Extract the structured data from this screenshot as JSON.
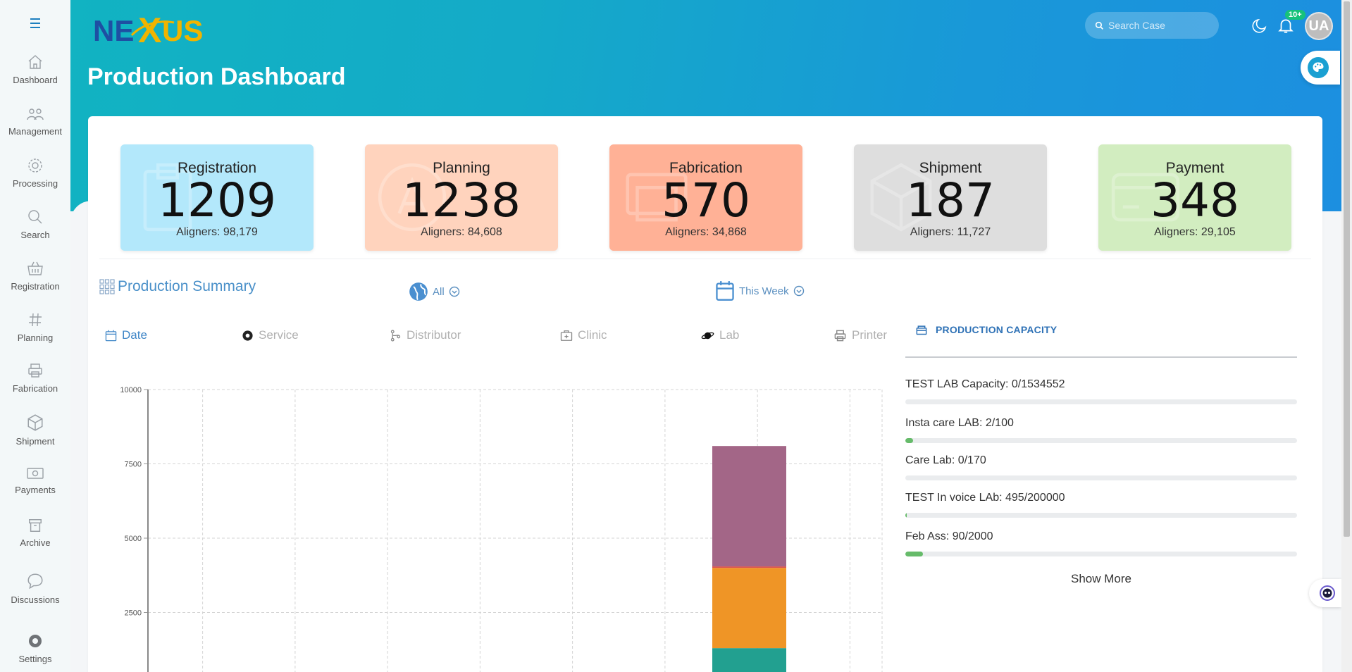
{
  "app": {
    "logo_text": "NEXUS",
    "page_title": "Production Dashboard"
  },
  "sidebar": {
    "items": [
      {
        "label": "Dashboard",
        "icon": "house-icon"
      },
      {
        "label": "Management",
        "icon": "users-icon"
      },
      {
        "label": "Processing",
        "icon": "gear-icon"
      },
      {
        "label": "Search",
        "icon": "search-icon"
      },
      {
        "label": "Registration",
        "icon": "basket-icon"
      },
      {
        "label": "Planning",
        "icon": "hash-icon"
      },
      {
        "label": "Fabrication",
        "icon": "printer-icon"
      },
      {
        "label": "Shipment",
        "icon": "box-icon"
      },
      {
        "label": "Payments",
        "icon": "money-icon"
      },
      {
        "label": "Archive",
        "icon": "archive-icon"
      },
      {
        "label": "Discussions",
        "icon": "chat-icon"
      },
      {
        "label": "Settings",
        "icon": "gear-icon"
      }
    ]
  },
  "header": {
    "search_placeholder": "Search Case",
    "notification_badge": "10+",
    "avatar_initials": "UA"
  },
  "stats": [
    {
      "title": "Registration",
      "value": "1209",
      "aligners": "Aligners: 98,179",
      "color": "#b3e8fb"
    },
    {
      "title": "Planning",
      "value": "1238",
      "aligners": "Aligners: 84,608",
      "color": "#ffd3bd"
    },
    {
      "title": "Fabrication",
      "value": "570",
      "aligners": "Aligners: 34,868",
      "color": "#ffb196"
    },
    {
      "title": "Shipment",
      "value": "187",
      "aligners": "Aligners: 11,727",
      "color": "#dedede"
    },
    {
      "title": "Payment",
      "value": "348",
      "aligners": "Aligners: 29,105",
      "color": "#d2edc0"
    }
  ],
  "summary": {
    "title": "Production Summary",
    "filter_all": "All",
    "filter_period": "This Week"
  },
  "tabs": [
    {
      "label": "Date",
      "active": true
    },
    {
      "label": "Service",
      "active": false
    },
    {
      "label": "Distributor",
      "active": false
    },
    {
      "label": "Clinic",
      "active": false
    },
    {
      "label": "Lab",
      "active": false
    },
    {
      "label": "Printer",
      "active": false
    }
  ],
  "chart_data": {
    "type": "bar",
    "stacked": true,
    "ylim": [
      0,
      10000
    ],
    "yticks": [
      "10000",
      "7500",
      "5000",
      "2500"
    ],
    "categories_count": 8,
    "series": [
      {
        "values": [
          0,
          0,
          0,
          0,
          0,
          0,
          1300,
          0
        ],
        "color": "#22a090"
      },
      {
        "values": [
          0,
          0,
          0,
          0,
          0,
          0,
          2700,
          0
        ],
        "color": "#ef9526"
      },
      {
        "values": [
          0,
          0,
          0,
          0,
          0,
          0,
          50,
          0
        ],
        "color": "#d9534f"
      },
      {
        "values": [
          0,
          0,
          0,
          0,
          0,
          0,
          4050,
          0
        ],
        "color": "#a36687"
      }
    ],
    "grid": true
  },
  "capacity": {
    "title": "PRODUCTION CAPACITY",
    "rows": [
      {
        "label": "TEST LAB Capacity: 0/1534552",
        "fraction": 0
      },
      {
        "label": "Insta care LAB: 2/100",
        "fraction": 0.02
      },
      {
        "label": "Care Lab: 0/170",
        "fraction": 0
      },
      {
        "label": "TEST In voice LAb: 495/200000",
        "fraction": 0.0025
      },
      {
        "label": "Feb Ass: 90/2000",
        "fraction": 0.045
      }
    ],
    "show_more": "Show More"
  }
}
